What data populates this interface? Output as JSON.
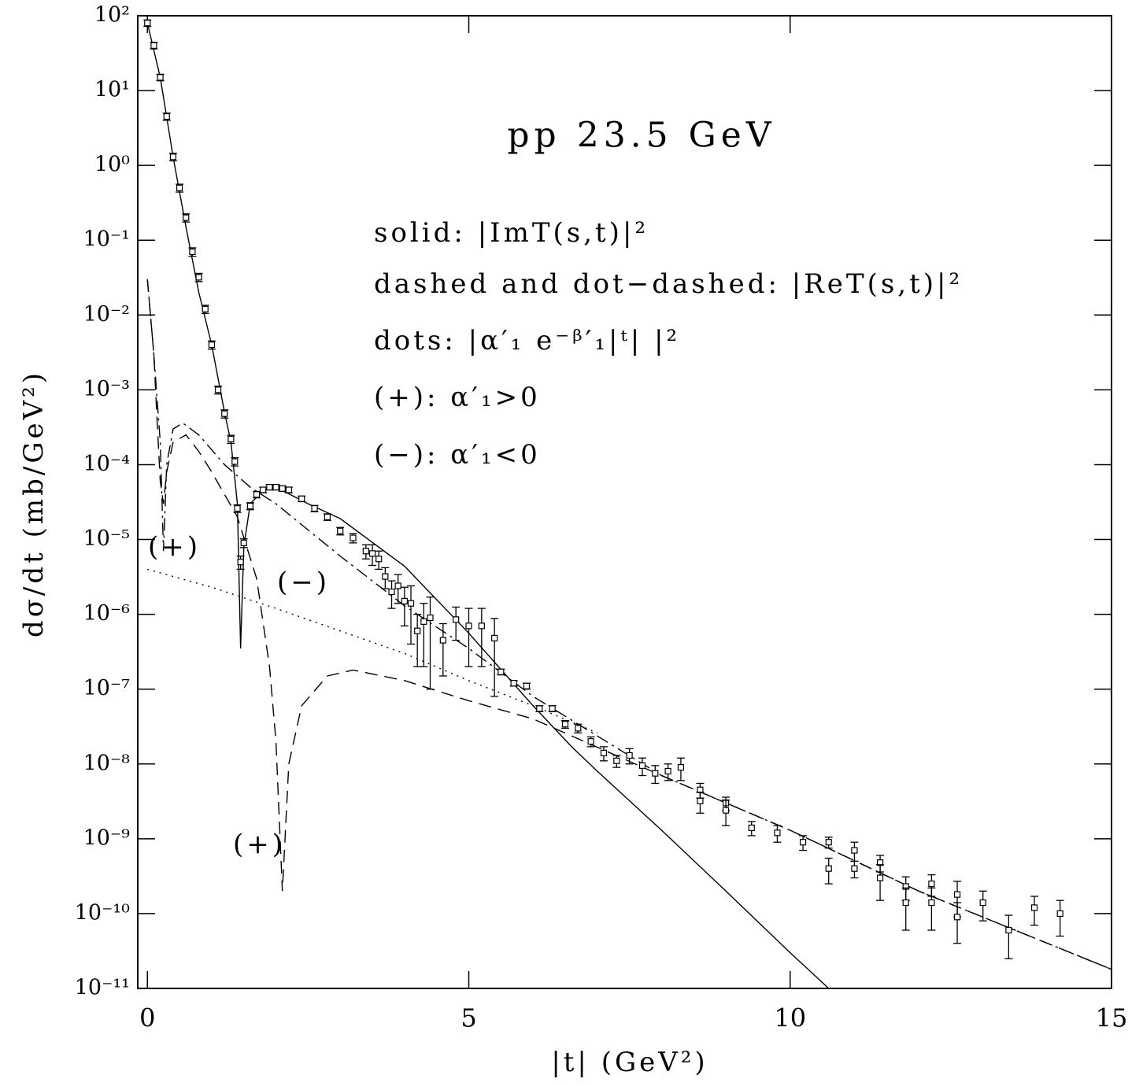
{
  "chart_data": {
    "type": "line",
    "title": "pp 23.5 GeV",
    "x_label": "|t| (GeV²)",
    "y_label": "dσ/dt (mb/GeV²)",
    "log_y": true,
    "xlim": [
      -0.15,
      15
    ],
    "ylim": [
      1e-11,
      100
    ],
    "xticks": [
      0,
      5,
      10,
      15
    ],
    "yticks": [
      {
        "value": 100,
        "label": "10²"
      },
      {
        "value": 10,
        "label": "10¹"
      },
      {
        "value": 1,
        "label": "10⁰"
      },
      {
        "value": 0.1,
        "label": "10⁻¹"
      },
      {
        "value": 0.01,
        "label": "10⁻²"
      },
      {
        "value": 0.001,
        "label": "10⁻³"
      },
      {
        "value": 0.0001,
        "label": "10⁻⁴"
      },
      {
        "value": 1e-05,
        "label": "10⁻⁵"
      },
      {
        "value": 1e-06,
        "label": "10⁻⁶"
      },
      {
        "value": 1e-07,
        "label": "10⁻⁷"
      },
      {
        "value": 1e-08,
        "label": "10⁻⁸"
      },
      {
        "value": 1e-09,
        "label": "10⁻⁹"
      },
      {
        "value": 1e-10,
        "label": "10⁻¹⁰"
      },
      {
        "value": 1e-11,
        "label": "10⁻¹¹"
      }
    ],
    "annotations": [
      "solid: |ImT(s,t)|²",
      "dashed and dot−dashed: |ReT(s,t)|²",
      "dots: |α′₁ e⁻ᵝ′₁|ᵗ| |²",
      "(+): α′₁>0",
      "(−): α′₁<0",
      "(+)",
      "(−)",
      "(+)"
    ],
    "series": [
      {
        "style": "solid",
        "color": "#000000",
        "x": [
          0,
          0.2,
          0.4,
          0.6,
          0.8,
          1.0,
          1.2,
          1.3,
          1.4,
          1.45,
          1.5,
          1.6,
          1.8,
          2.0,
          2.5,
          3,
          4,
          5,
          6,
          6.6,
          7,
          8,
          9,
          10,
          10.6
        ],
        "values": [
          80,
          15,
          1.3,
          0.15,
          0.02,
          0.004,
          0.0005,
          0.0002,
          3e-05,
          3.5e-07,
          8e-06,
          3e-05,
          4.5e-05,
          5e-05,
          3e-05,
          1.9e-05,
          4.4e-06,
          5.6e-07,
          6e-08,
          1.7e-08,
          8e-09,
          1.3e-09,
          2e-10,
          3e-11,
          1e-11
        ]
      },
      {
        "style": "dashed",
        "color": "#000000",
        "x": [
          0,
          0.1,
          0.15,
          0.2,
          0.25,
          0.3,
          0.4,
          0.6,
          0.8,
          1.0,
          1.4,
          1.7,
          1.9,
          2.0,
          2.1,
          2.2,
          2.4,
          2.8,
          3.2,
          4,
          5,
          6,
          8,
          10,
          12,
          15
        ],
        "values": [
          0.03,
          0.003,
          0.0004,
          6e-05,
          3e-05,
          8e-05,
          0.0002,
          0.00025,
          0.00015,
          8e-05,
          2e-05,
          3e-06,
          2e-07,
          2e-08,
          2e-10,
          1e-08,
          6e-08,
          1.5e-07,
          1.8e-07,
          1.3e-07,
          7e-08,
          4e-08,
          7e-09,
          1.3e-09,
          2e-10,
          1.8e-11
        ]
      },
      {
        "style": "dash-dot",
        "color": "#000000",
        "x": [
          0,
          0.1,
          0.2,
          0.25,
          0.3,
          0.4,
          0.55,
          0.8,
          1.2,
          1.6,
          2,
          3,
          4,
          5,
          6,
          8,
          10,
          12,
          15
        ],
        "values": [
          0.03,
          0.003,
          0.0002,
          7e-06,
          0.0001,
          0.0003,
          0.00036,
          0.00025,
          0.0001,
          5e-05,
          3e-05,
          6e-06,
          1.3e-06,
          3.5e-07,
          8e-08,
          7e-09,
          1.3e-09,
          2e-10,
          1.8e-11
        ]
      },
      {
        "style": "dotted",
        "color": "#000000",
        "x": [
          0,
          1,
          2,
          3,
          4,
          5,
          6,
          7
        ],
        "values": [
          4e-06,
          2.3e-06,
          1.2e-06,
          6e-07,
          3e-07,
          1.3e-07,
          6e-08,
          2.6e-08
        ]
      },
      {
        "style": "square-errorbar",
        "color": "#000000",
        "x": [
          0.0,
          0.1,
          0.2,
          0.3,
          0.4,
          0.5,
          0.6,
          0.7,
          0.8,
          0.9,
          1.0,
          1.1,
          1.2,
          1.3,
          1.36,
          1.4,
          1.45,
          1.5,
          1.6,
          1.7,
          1.8,
          1.9,
          2.0,
          2.1,
          2.2,
          2.4,
          2.6,
          2.8,
          3.0,
          3.2,
          3.4,
          3.5,
          3.6,
          3.7,
          3.8,
          3.9,
          4.0,
          4.1,
          4.2,
          4.3,
          4.4,
          4.6,
          4.8,
          5.0,
          5.2,
          5.4,
          5.5,
          5.7,
          5.9,
          6.1,
          6.3,
          6.5,
          6.7,
          6.9,
          7.1,
          7.3,
          7.5,
          7.7,
          7.9,
          8.1,
          8.3,
          8.6,
          8.6,
          9.0,
          9.0,
          9.4,
          9.8,
          10.2,
          10.6,
          10.6,
          11.0,
          11.0,
          11.4,
          11.4,
          11.8,
          11.8,
          12.2,
          12.2,
          12.6,
          12.6,
          13.0,
          13.4,
          13.8,
          14.2
        ],
        "values": [
          80,
          40,
          15,
          4.5,
          1.3,
          0.5,
          0.2,
          0.07,
          0.032,
          0.012,
          0.004,
          0.001,
          0.00048,
          0.00022,
          0.00011,
          2.6e-05,
          5e-06,
          9e-06,
          2.8e-05,
          4e-05,
          4.6e-05,
          5e-05,
          5e-05,
          4.8e-05,
          4.6e-05,
          3.5e-05,
          2.6e-05,
          2e-05,
          1.3e-05,
          1.05e-05,
          7e-06,
          6.5e-06,
          5.5e-06,
          3.2e-06,
          2e-06,
          2.4e-06,
          1.5e-06,
          1.4e-06,
          6e-07,
          8e-07,
          9e-07,
          4.5e-07,
          8.5e-07,
          7e-07,
          7e-07,
          4.8e-07,
          1.7e-07,
          1.2e-07,
          1.1e-07,
          5.5e-08,
          5.5e-08,
          3.4e-08,
          3e-08,
          2e-08,
          1.4e-08,
          1.1e-08,
          1.3e-08,
          9.5e-09,
          7.5e-09,
          8e-09,
          9e-09,
          4.5e-09,
          3.2e-09,
          3e-09,
          2.4e-09,
          1.4e-09,
          1.2e-09,
          9e-10,
          9e-10,
          4e-10,
          7e-10,
          4e-10,
          4.8e-10,
          3e-10,
          2.3e-10,
          1.4e-10,
          2.5e-10,
          1.4e-10,
          1.8e-10,
          9e-11,
          1.4e-10,
          6e-11,
          1.2e-10,
          1e-10
        ],
        "errors": [
          8,
          4,
          1.5,
          0.5,
          0.15,
          0.06,
          0.025,
          0.009,
          0.004,
          0.0015,
          0.0005,
          0.00012,
          6e-05,
          2.7e-05,
          1.4e-05,
          3e-06,
          1e-06,
          1.2e-06,
          3e-06,
          4e-06,
          4e-06,
          4e-06,
          4e-06,
          4e-06,
          4e-06,
          3e-06,
          2.5e-06,
          2e-06,
          1.5e-06,
          1.5e-06,
          1.5e-06,
          2e-06,
          1.5e-06,
          1e-06,
          8e-07,
          1e-06,
          8e-07,
          1e-06,
          4e-07,
          6e-07,
          8e-07,
          3e-07,
          4e-07,
          5e-07,
          5e-07,
          4e-07,
          1.5e-08,
          1e-08,
          1e-08,
          5e-09,
          5e-09,
          4e-09,
          4e-09,
          3e-09,
          3e-09,
          2e-09,
          3e-09,
          2.5e-09,
          2e-09,
          2e-09,
          3e-09,
          1e-09,
          1e-09,
          6e-10,
          9e-10,
          3e-10,
          3e-10,
          2e-10,
          1.5e-10,
          1.5e-10,
          2e-10,
          1e-10,
          1.2e-10,
          1.5e-10,
          8e-11,
          8e-11,
          8e-11,
          8e-11,
          9e-11,
          5e-11,
          6e-11,
          3.5e-11,
          5e-11,
          5e-11
        ]
      }
    ]
  }
}
